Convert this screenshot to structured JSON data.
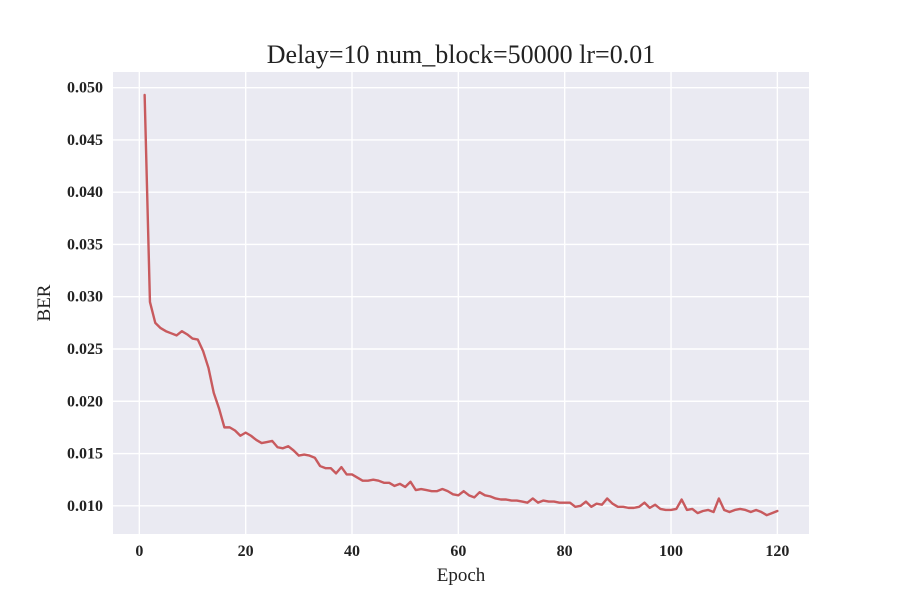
{
  "chart_data": {
    "type": "line",
    "title": "Delay=10 num_block=50000 lr=0.01",
    "xlabel": "Epoch",
    "ylabel": "BER",
    "xlim": [
      -4.95,
      125.95
    ],
    "ylim": [
      0.0073,
      0.0515
    ],
    "grid": true,
    "x_ticks": [
      0,
      20,
      40,
      60,
      80,
      100,
      120
    ],
    "x_tick_labels": [
      "0",
      "20",
      "40",
      "60",
      "80",
      "100",
      "120"
    ],
    "y_ticks": [
      0.01,
      0.015,
      0.02,
      0.025,
      0.03,
      0.035,
      0.04,
      0.045,
      0.05
    ],
    "y_tick_labels": [
      "0.010",
      "0.015",
      "0.020",
      "0.025",
      "0.030",
      "0.035",
      "0.040",
      "0.045",
      "0.050"
    ],
    "colors": {
      "line": "#c85a5e",
      "plot_background": "#eaeaf2",
      "grid": "#ffffff"
    },
    "series": [
      {
        "x": [
          1,
          2,
          3,
          4,
          5,
          6,
          7,
          8,
          9,
          10,
          11,
          12,
          13,
          14,
          15,
          16,
          17,
          18,
          19,
          20,
          21,
          22,
          23,
          24,
          25,
          26,
          27,
          28,
          29,
          30,
          31,
          32,
          33,
          34,
          35,
          36,
          37,
          38,
          39,
          40,
          41,
          42,
          43,
          44,
          45,
          46,
          47,
          48,
          49,
          50,
          51,
          52,
          53,
          54,
          55,
          56,
          57,
          58,
          59,
          60,
          61,
          62,
          63,
          64,
          65,
          66,
          67,
          68,
          69,
          70,
          71,
          72,
          73,
          74,
          75,
          76,
          77,
          78,
          79,
          80,
          81,
          82,
          83,
          84,
          85,
          86,
          87,
          88,
          89,
          90,
          91,
          92,
          93,
          94,
          95,
          96,
          97,
          98,
          99,
          100,
          101,
          102,
          103,
          104,
          105,
          106,
          107,
          108,
          109,
          110,
          111,
          112,
          113,
          114,
          115,
          116,
          117,
          118,
          119,
          120
        ],
        "values": [
          0.0493,
          0.0295,
          0.0275,
          0.027,
          0.0267,
          0.0265,
          0.0263,
          0.0267,
          0.0264,
          0.026,
          0.0259,
          0.0248,
          0.0232,
          0.0208,
          0.0193,
          0.0175,
          0.0175,
          0.0172,
          0.0167,
          0.017,
          0.0167,
          0.0163,
          0.016,
          0.0161,
          0.0162,
          0.0156,
          0.0155,
          0.0157,
          0.0153,
          0.0148,
          0.0149,
          0.0148,
          0.0146,
          0.0138,
          0.0136,
          0.0136,
          0.0131,
          0.0137,
          0.013,
          0.013,
          0.0127,
          0.0124,
          0.0124,
          0.0125,
          0.0124,
          0.0122,
          0.0122,
          0.0119,
          0.0121,
          0.0118,
          0.0123,
          0.0115,
          0.0116,
          0.0115,
          0.0114,
          0.0114,
          0.0116,
          0.0114,
          0.0111,
          0.011,
          0.0114,
          0.011,
          0.0108,
          0.0113,
          0.011,
          0.0109,
          0.0107,
          0.0106,
          0.0106,
          0.0105,
          0.0105,
          0.0104,
          0.0103,
          0.0107,
          0.0103,
          0.0105,
          0.0104,
          0.0104,
          0.0103,
          0.0103,
          0.0103,
          0.0099,
          0.01,
          0.0104,
          0.0099,
          0.0102,
          0.0101,
          0.0107,
          0.0102,
          0.0099,
          0.0099,
          0.0098,
          0.0098,
          0.0099,
          0.0103,
          0.0098,
          0.0101,
          0.0097,
          0.0096,
          0.0096,
          0.0097,
          0.0106,
          0.0096,
          0.0097,
          0.0093,
          0.0095,
          0.0096,
          0.0094,
          0.0107,
          0.0096,
          0.0094,
          0.0096,
          0.0097,
          0.0096,
          0.0094,
          0.0096,
          0.0094,
          0.0091,
          0.0093,
          0.0095
        ]
      }
    ]
  }
}
